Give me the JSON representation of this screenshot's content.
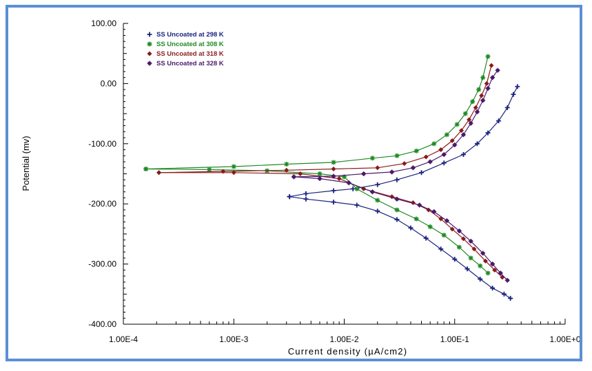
{
  "chart_data": {
    "type": "line",
    "xlabel": "Current density (µA/cm2)",
    "ylabel": "Potential (mv)",
    "xscale": "log",
    "xlim": [
      0.0001,
      1
    ],
    "ylim": [
      -400,
      100
    ],
    "x_ticks": [
      "1.00E-4",
      "1.00E-3",
      "1.00E-2",
      "1.00E-1",
      "1.00E+0"
    ],
    "y_ticks": [
      "100.00",
      "0.00",
      "-100.00",
      "-200.00",
      "-300.00",
      "-400.00"
    ],
    "y_tick_values": [
      100,
      0,
      -100,
      -200,
      -300,
      -400
    ],
    "grid": false,
    "legend_position": "top-left",
    "series": [
      {
        "name": "SS Uncoated at 298 K",
        "color": "#1a237e",
        "marker": "plus",
        "cathodic": [
          [
            0.32,
            -357
          ],
          [
            0.28,
            -350
          ],
          [
            0.22,
            -340
          ],
          [
            0.17,
            -325
          ],
          [
            0.13,
            -308
          ],
          [
            0.1,
            -292
          ],
          [
            0.075,
            -275
          ],
          [
            0.055,
            -257
          ],
          [
            0.04,
            -240
          ],
          [
            0.03,
            -226
          ],
          [
            0.02,
            -212
          ],
          [
            0.013,
            -202
          ],
          [
            0.008,
            -197
          ],
          [
            0.0045,
            -192
          ],
          [
            0.0032,
            -188
          ]
        ],
        "anodic": [
          [
            0.0032,
            -188
          ],
          [
            0.0045,
            -183
          ],
          [
            0.008,
            -178
          ],
          [
            0.012,
            -175
          ],
          [
            0.02,
            -168
          ],
          [
            0.03,
            -160
          ],
          [
            0.05,
            -148
          ],
          [
            0.08,
            -132
          ],
          [
            0.12,
            -118
          ],
          [
            0.16,
            -100
          ],
          [
            0.2,
            -82
          ],
          [
            0.25,
            -62
          ],
          [
            0.3,
            -40
          ],
          [
            0.34,
            -18
          ],
          [
            0.37,
            -5
          ]
        ]
      },
      {
        "name": "SS Uncoated at 308 K",
        "color": "#1e8a23",
        "marker": "asterisk",
        "cathodic": [
          [
            0.2,
            -315
          ],
          [
            0.17,
            -303
          ],
          [
            0.14,
            -290
          ],
          [
            0.11,
            -272
          ],
          [
            0.08,
            -252
          ],
          [
            0.06,
            -238
          ],
          [
            0.045,
            -225
          ],
          [
            0.03,
            -210
          ],
          [
            0.02,
            -194
          ],
          [
            0.013,
            -175
          ],
          [
            0.01,
            -155
          ],
          [
            0.006,
            -150
          ],
          [
            0.002,
            -145
          ],
          [
            0.0006,
            -143
          ],
          [
            0.00016,
            -142
          ]
        ],
        "anodic": [
          [
            0.00016,
            -142
          ],
          [
            0.001,
            -138
          ],
          [
            0.003,
            -134
          ],
          [
            0.008,
            -131
          ],
          [
            0.018,
            -124
          ],
          [
            0.03,
            -120
          ],
          [
            0.045,
            -112
          ],
          [
            0.065,
            -100
          ],
          [
            0.085,
            -85
          ],
          [
            0.105,
            -68
          ],
          [
            0.125,
            -50
          ],
          [
            0.145,
            -30
          ],
          [
            0.165,
            -10
          ],
          [
            0.18,
            10
          ],
          [
            0.2,
            45
          ]
        ]
      },
      {
        "name": "SS Uncoated at 318 K",
        "color": "#8b1a1a",
        "marker": "diamond",
        "cathodic": [
          [
            0.27,
            -322
          ],
          [
            0.23,
            -310
          ],
          [
            0.19,
            -295
          ],
          [
            0.15,
            -275
          ],
          [
            0.12,
            -258
          ],
          [
            0.095,
            -242
          ],
          [
            0.075,
            -225
          ],
          [
            0.058,
            -210
          ],
          [
            0.042,
            -198
          ],
          [
            0.027,
            -188
          ],
          [
            0.015,
            -175
          ],
          [
            0.009,
            -158
          ],
          [
            0.004,
            -150
          ],
          [
            0.001,
            -148
          ],
          [
            0.00021,
            -148
          ]
        ],
        "anodic": [
          [
            0.00021,
            -148
          ],
          [
            0.0008,
            -146
          ],
          [
            0.003,
            -144
          ],
          [
            0.008,
            -142
          ],
          [
            0.02,
            -140
          ],
          [
            0.035,
            -133
          ],
          [
            0.055,
            -122
          ],
          [
            0.075,
            -110
          ],
          [
            0.095,
            -95
          ],
          [
            0.115,
            -78
          ],
          [
            0.135,
            -60
          ],
          [
            0.155,
            -40
          ],
          [
            0.175,
            -20
          ],
          [
            0.195,
            0
          ],
          [
            0.215,
            30
          ]
        ]
      },
      {
        "name": "SS Uncoated at 328 K",
        "color": "#4a1a6b",
        "marker": "star",
        "cathodic": [
          [
            0.3,
            -327
          ],
          [
            0.26,
            -315
          ],
          [
            0.22,
            -300
          ],
          [
            0.18,
            -282
          ],
          [
            0.14,
            -262
          ],
          [
            0.11,
            -245
          ],
          [
            0.085,
            -228
          ],
          [
            0.065,
            -213
          ],
          [
            0.048,
            -202
          ],
          [
            0.03,
            -192
          ],
          [
            0.018,
            -180
          ],
          [
            0.011,
            -165
          ],
          [
            0.006,
            -158
          ],
          [
            0.0035,
            -155
          ]
        ],
        "anodic": [
          [
            0.0035,
            -155
          ],
          [
            0.008,
            -154
          ],
          [
            0.015,
            -150
          ],
          [
            0.027,
            -147
          ],
          [
            0.042,
            -140
          ],
          [
            0.06,
            -130
          ],
          [
            0.08,
            -118
          ],
          [
            0.1,
            -102
          ],
          [
            0.12,
            -85
          ],
          [
            0.14,
            -66
          ],
          [
            0.16,
            -47
          ],
          [
            0.18,
            -28
          ],
          [
            0.2,
            -8
          ],
          [
            0.22,
            10
          ],
          [
            0.245,
            22
          ]
        ]
      }
    ]
  }
}
